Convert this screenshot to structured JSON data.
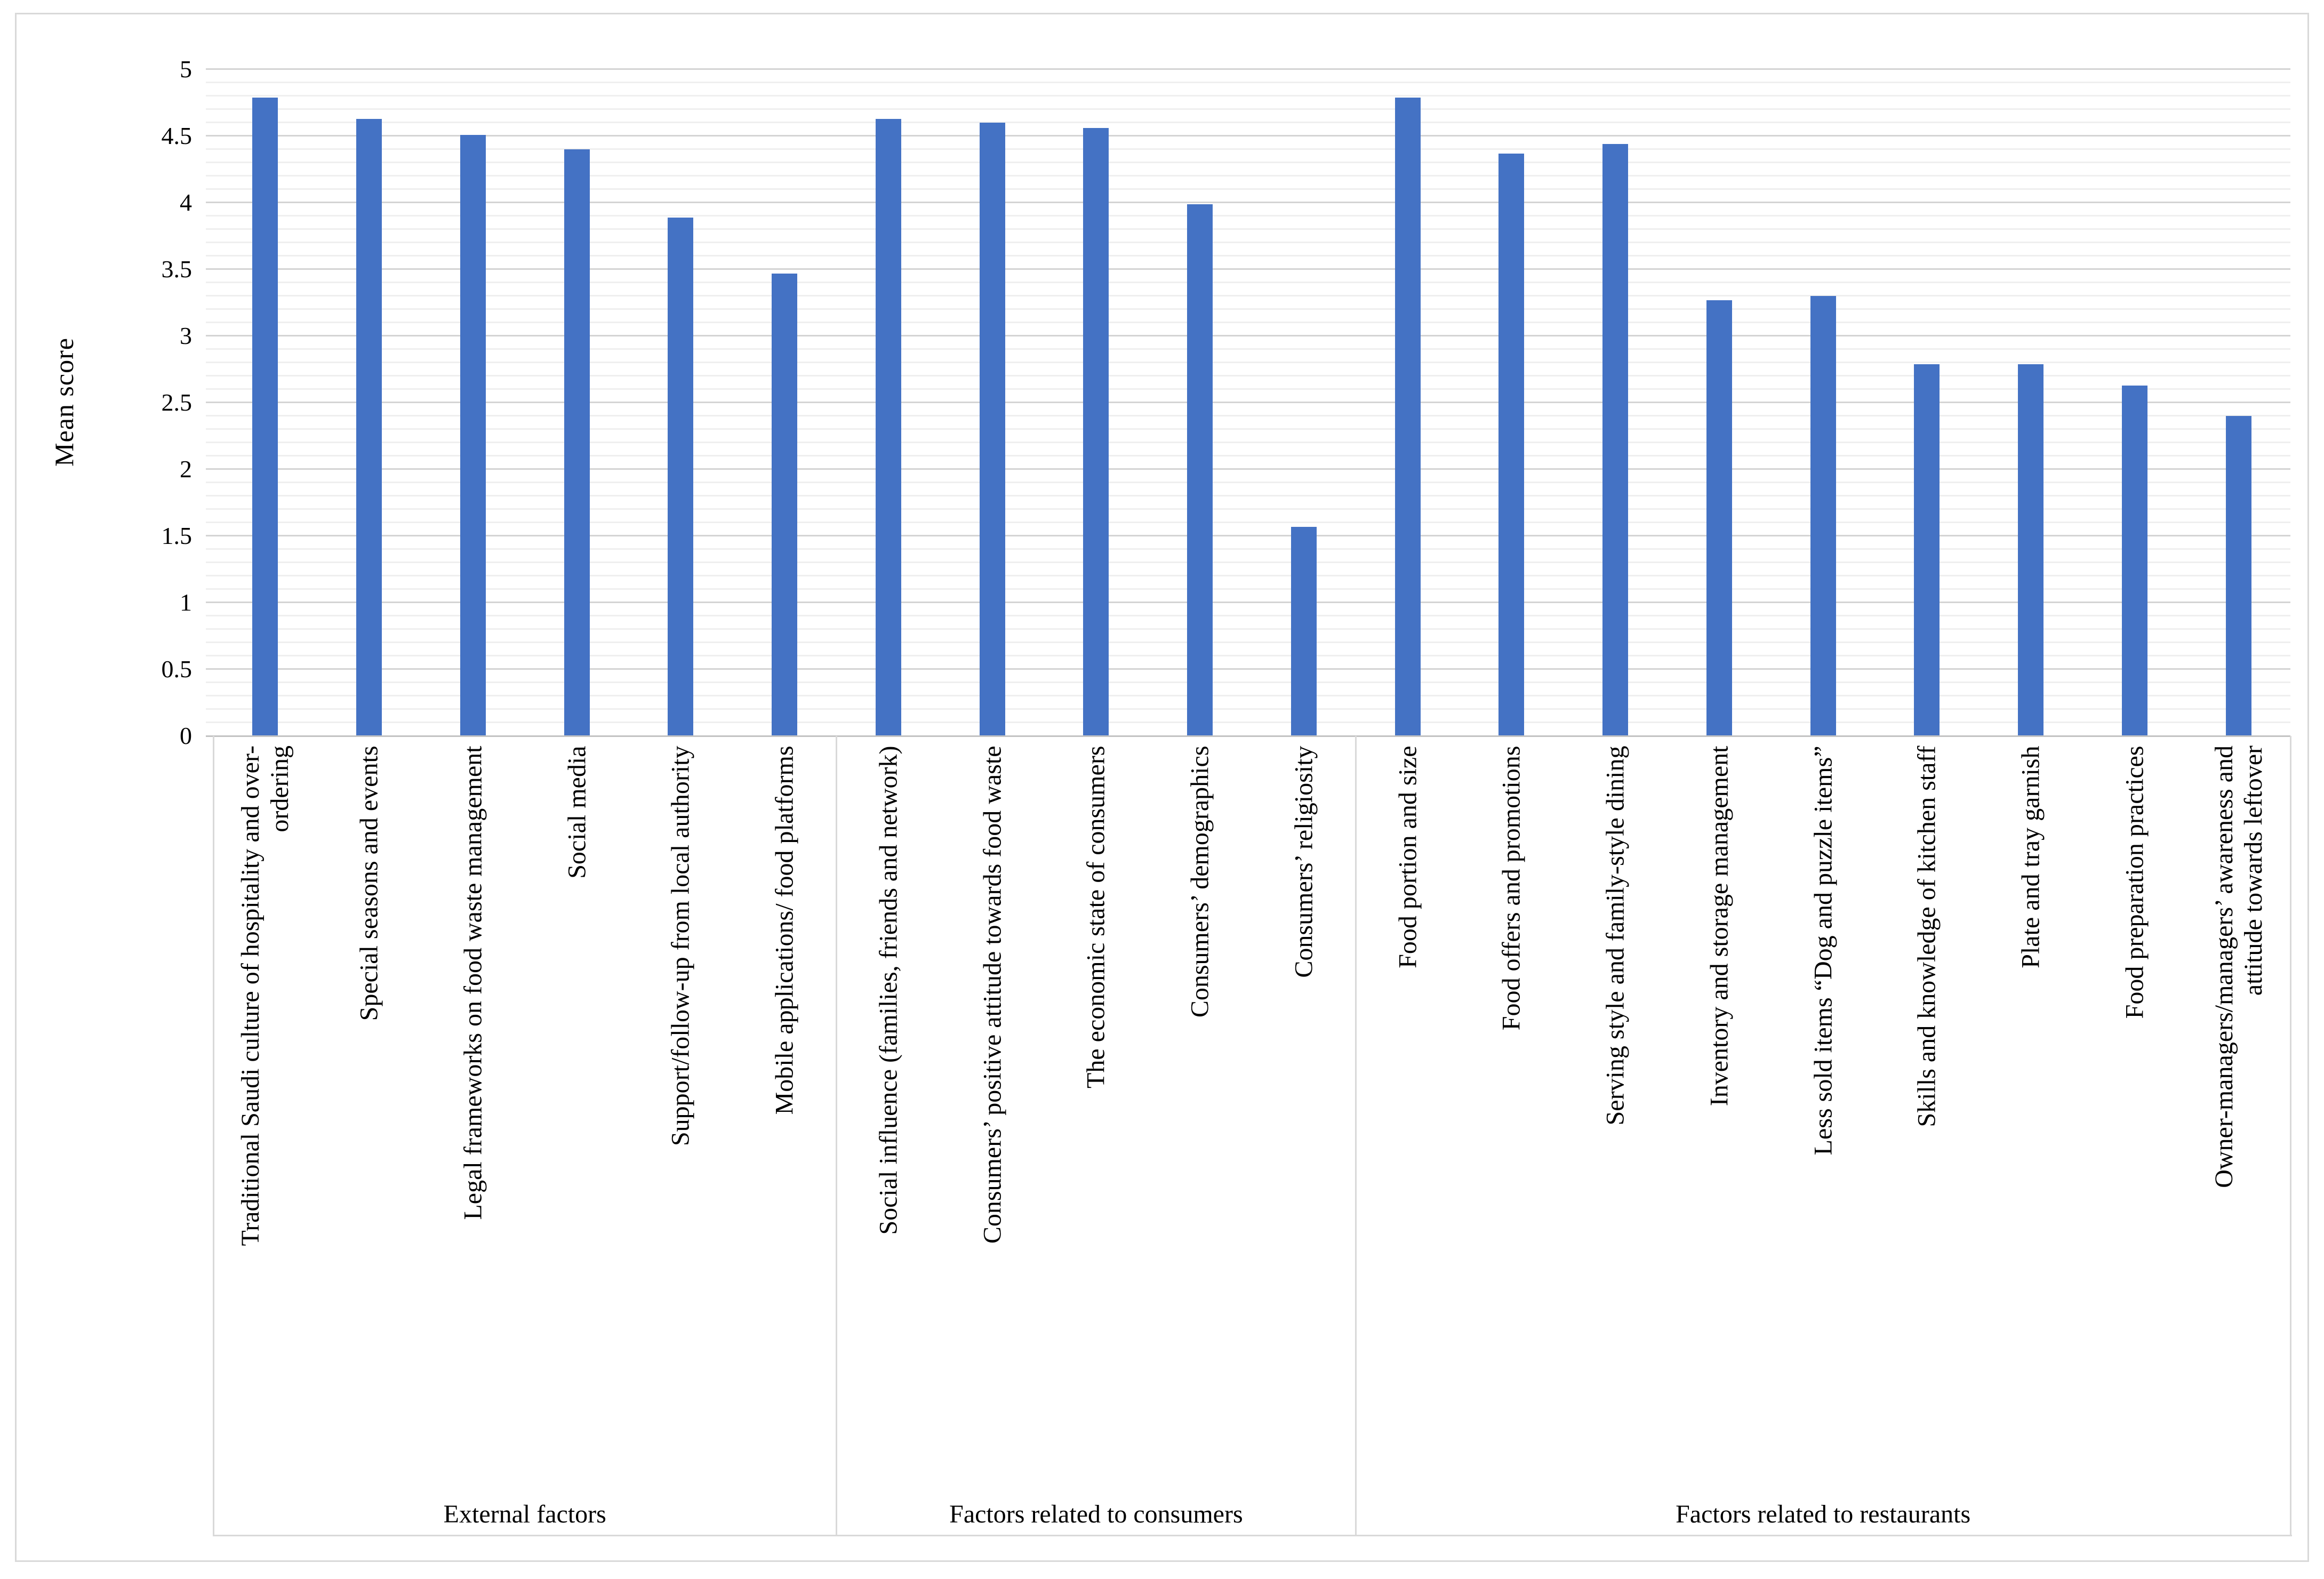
{
  "chart_data": {
    "type": "bar",
    "title": "",
    "xlabel": "",
    "ylabel": "Mean score",
    "ylim": [
      0,
      5
    ],
    "major_tick_step": 0.5,
    "minor_grid_step": 0.1,
    "grid": "on",
    "legend": "none",
    "bar_color": "#4472C4",
    "gridline_minor_color": "#EFEFEF",
    "gridline_major_color": "#D4D4D4",
    "axis_line_color": "#C3C3C3",
    "separator_color": "#D9D9D9",
    "y_ticks": [
      "5",
      "4.5",
      "4",
      "3.5",
      "3",
      "2.5",
      "2",
      "1.5",
      "1",
      "0.5",
      "0"
    ],
    "groups": [
      {
        "label": "External factors",
        "categories": [
          "Traditional Saudi culture of hospitality and over-\nordering",
          "Special seasons and events",
          "Legal frameworks on food waste management",
          "Social media",
          "Support/follow-up from local authority",
          "Mobile applications/ food platforms"
        ],
        "values": [
          4.79,
          4.63,
          4.51,
          4.4,
          3.89,
          3.47
        ]
      },
      {
        "label": "Factors related to consumers",
        "categories": [
          "Social influence (families, friends and network)",
          "Consumers’ positive attitude towards food waste",
          "The economic state of consumers",
          "Consumers’ demographics",
          "Consumers’ religiosity"
        ],
        "values": [
          4.63,
          4.6,
          4.56,
          3.99,
          1.57
        ]
      },
      {
        "label": "Factors related to restaurants",
        "categories": [
          "Food portion and size",
          "Food offers and promotions",
          "Serving style and family-style dining",
          "Inventory and storage management",
          "Less sold items “Dog and puzzle items”",
          "Skills and knowledge of kitchen staff",
          "Plate and tray garnish",
          "Food preparation practices",
          "Owner-managers/managers’ awareness and\nattitude towards leftover"
        ],
        "values": [
          4.79,
          4.37,
          4.44,
          3.27,
          3.3,
          2.79,
          2.79,
          2.63,
          2.4
        ]
      }
    ]
  }
}
